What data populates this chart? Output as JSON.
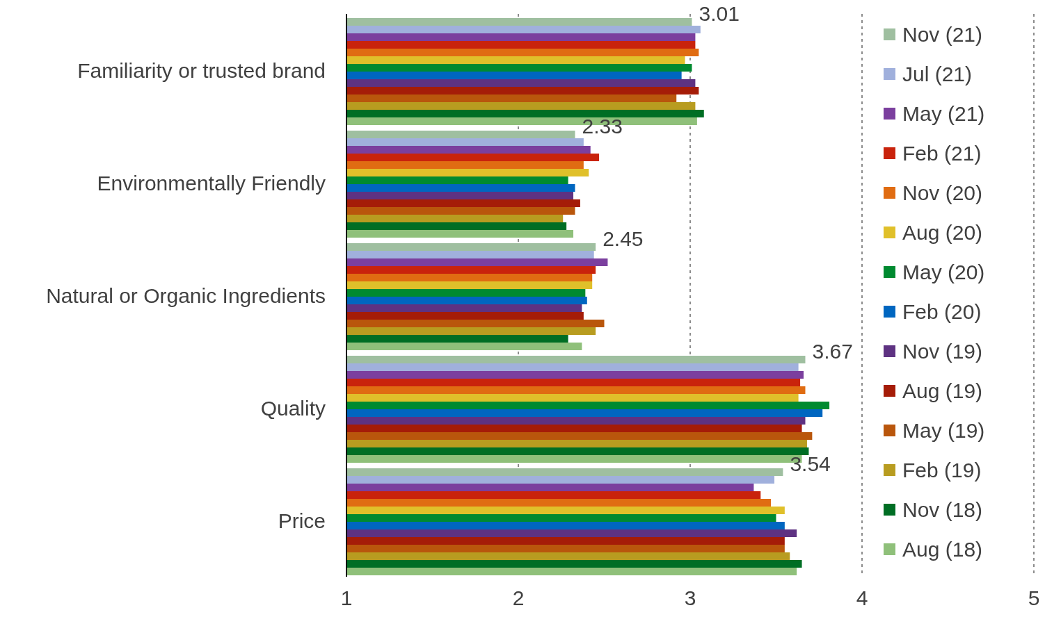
{
  "chart_data": {
    "type": "bar",
    "orientation": "horizontal",
    "categories": [
      "Familiarity or trusted brand",
      "Environmentally Friendly",
      "Natural or Organic Ingredients",
      "Quality",
      "Price"
    ],
    "xlim": [
      1,
      5
    ],
    "xticks": [
      1,
      2,
      3,
      4,
      5
    ],
    "grid": "x",
    "legend": "right",
    "series": [
      {
        "name": "Nov (21)",
        "color": "#9fbfa0",
        "values": [
          3.01,
          2.33,
          2.45,
          3.67,
          3.54
        ],
        "value_labels": [
          "3.01",
          "2.33",
          "2.45",
          "3.67",
          "3.54"
        ]
      },
      {
        "name": "Jul (21)",
        "color": "#a0b0dc",
        "values": [
          3.06,
          2.38,
          2.44,
          3.63,
          3.49
        ]
      },
      {
        "name": "May (21)",
        "color": "#7b3f9e",
        "values": [
          3.03,
          2.42,
          2.52,
          3.66,
          3.37
        ]
      },
      {
        "name": "Feb (21)",
        "color": "#c9230c",
        "values": [
          3.03,
          2.47,
          2.45,
          3.64,
          3.41
        ]
      },
      {
        "name": "Nov (20)",
        "color": "#e06c12",
        "values": [
          3.05,
          2.38,
          2.43,
          3.67,
          3.47
        ]
      },
      {
        "name": "Aug (20)",
        "color": "#e0c02a",
        "values": [
          2.97,
          2.41,
          2.43,
          3.63,
          3.55
        ]
      },
      {
        "name": "May (20)",
        "color": "#008a30",
        "values": [
          3.01,
          2.29,
          2.39,
          3.81,
          3.5
        ]
      },
      {
        "name": "Feb (20)",
        "color": "#0066c0",
        "values": [
          2.95,
          2.33,
          2.4,
          3.77,
          3.55
        ]
      },
      {
        "name": "Nov (19)",
        "color": "#5e3282",
        "values": [
          3.03,
          2.32,
          2.37,
          3.67,
          3.62
        ]
      },
      {
        "name": "Aug (19)",
        "color": "#a51c08",
        "values": [
          3.05,
          2.36,
          2.38,
          3.65,
          3.55
        ]
      },
      {
        "name": "May (19)",
        "color": "#b9560c",
        "values": [
          2.92,
          2.33,
          2.5,
          3.71,
          3.55
        ]
      },
      {
        "name": "Feb (19)",
        "color": "#b89c20",
        "values": [
          3.03,
          2.26,
          2.45,
          3.68,
          3.58
        ]
      },
      {
        "name": "Nov (18)",
        "color": "#006e24",
        "values": [
          3.08,
          2.28,
          2.29,
          3.69,
          3.65
        ]
      },
      {
        "name": "Aug (18)",
        "color": "#8fc07a",
        "values": [
          3.04,
          2.32,
          2.37,
          3.65,
          3.62
        ]
      }
    ]
  }
}
